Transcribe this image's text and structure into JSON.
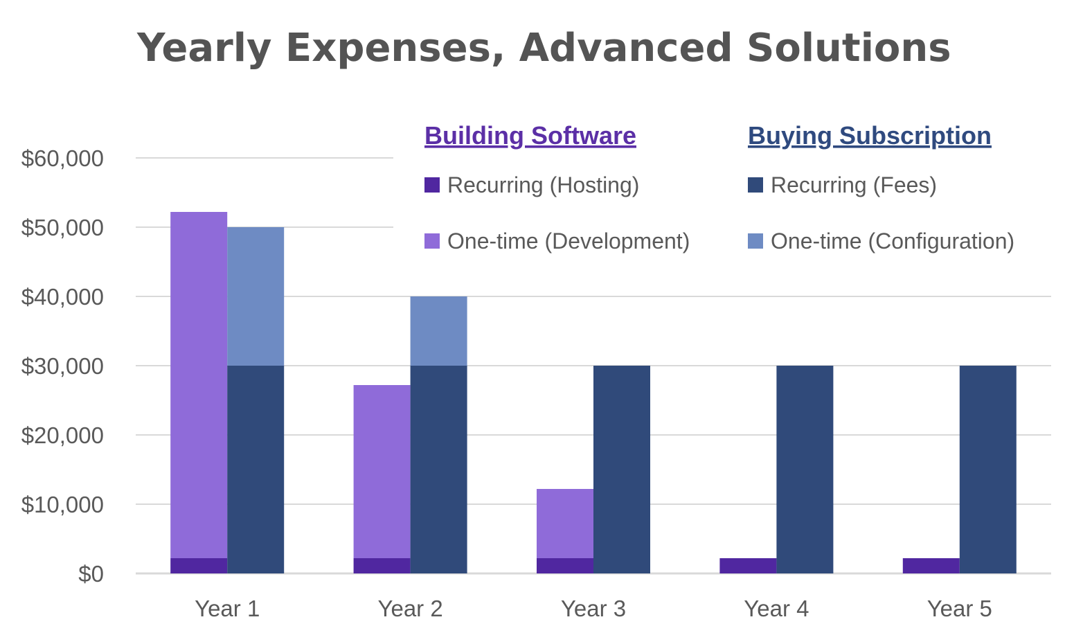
{
  "chart_data": {
    "type": "bar",
    "title": "Yearly Expenses, Advanced Solutions",
    "categories": [
      "Year 1",
      "Year 2",
      "Year 3",
      "Year 4",
      "Year 5"
    ],
    "ylim": [
      0,
      60000
    ],
    "yticks": [
      0,
      10000,
      20000,
      30000,
      40000,
      50000,
      60000
    ],
    "ytick_labels": [
      "$0",
      "$10,000",
      "$20,000",
      "$30,000",
      "$40,000",
      "$50,000",
      "$60,000"
    ],
    "grid": true,
    "legend_position": "top-right",
    "groups": [
      {
        "name": "Building Software",
        "color": "#5b2fa6",
        "series": [
          {
            "name": "Recurring (Hosting)",
            "color": "#5027a0",
            "values": [
              2200,
              2200,
              2200,
              2200,
              2200
            ]
          },
          {
            "name": "One-time (Development)",
            "color": "#8f6bd9",
            "values": [
              50000,
              25000,
              10000,
              0,
              0
            ]
          }
        ]
      },
      {
        "name": "Buying Subscription",
        "color": "#2f4a7f",
        "series": [
          {
            "name": "Recurring (Fees)",
            "color": "#304a7a",
            "values": [
              30000,
              30000,
              30000,
              30000,
              30000
            ]
          },
          {
            "name": "One-time (Configuration)",
            "color": "#6e8bc3",
            "values": [
              20000,
              10000,
              0,
              0,
              0
            ]
          }
        ]
      }
    ]
  }
}
